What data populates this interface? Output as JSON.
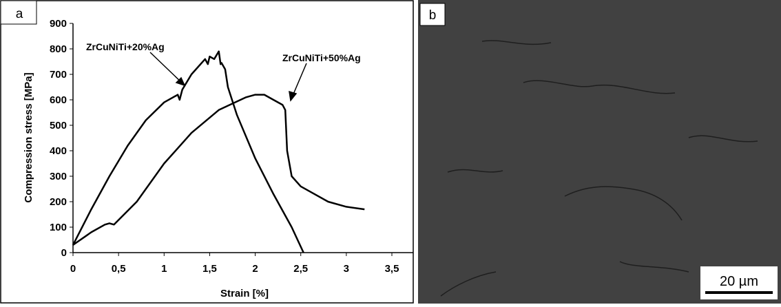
{
  "chart_data": {
    "type": "line",
    "x_label": "Strain [%]",
    "y_label": "Compression stress [MPa]",
    "xlim": [
      0,
      3.5
    ],
    "xticks": [
      0,
      {
        "value": 0.5,
        "label": "0,5"
      },
      1,
      {
        "value": 1.5,
        "label": "1,5"
      },
      2,
      {
        "value": 2.5,
        "label": "2,5"
      },
      3,
      {
        "value": 3.5,
        "label": "3,5"
      }
    ],
    "ylim": [
      0,
      900
    ],
    "yticks": [
      0,
      100,
      200,
      300,
      400,
      500,
      600,
      700,
      800,
      900
    ],
    "series": [
      {
        "name": "ZrCuNiTi+20%Ag",
        "color": "#000000",
        "x": [
          0,
          0.2,
          0.4,
          0.6,
          0.8,
          1.0,
          1.15,
          1.17,
          1.2,
          1.3,
          1.45,
          1.48,
          1.5,
          1.55,
          1.6,
          1.62,
          1.63,
          1.67,
          1.7,
          1.8,
          2.0,
          2.2,
          2.4,
          2.53
        ],
        "values": [
          30,
          170,
          300,
          420,
          520,
          590,
          620,
          600,
          640,
          700,
          760,
          740,
          770,
          760,
          790,
          740,
          745,
          720,
          650,
          540,
          370,
          230,
          100,
          0
        ]
      },
      {
        "name": "ZrCuNiTi+50%Ag",
        "color": "#000000",
        "x": [
          0,
          0.2,
          0.35,
          0.4,
          0.45,
          0.7,
          1.0,
          1.3,
          1.6,
          1.9,
          2.0,
          2.1,
          2.2,
          2.3,
          2.33,
          2.35,
          2.4,
          2.5,
          2.6,
          2.8,
          3.0,
          3.2
        ],
        "values": [
          30,
          80,
          110,
          115,
          110,
          200,
          350,
          470,
          560,
          610,
          620,
          620,
          600,
          580,
          560,
          400,
          300,
          260,
          240,
          200,
          180,
          170
        ]
      }
    ]
  },
  "panel_labels": [
    "a",
    "b"
  ],
  "scale_bar": "20 µm"
}
